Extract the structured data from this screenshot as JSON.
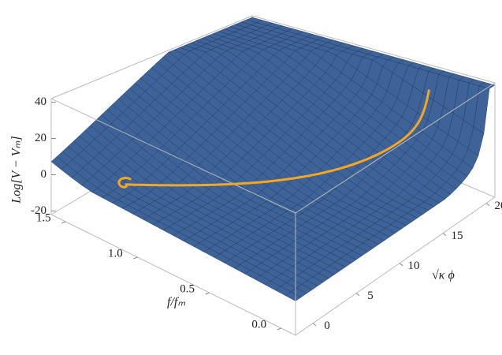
{
  "chart_data": {
    "type": "surface3d",
    "xlabel": "√κ ϕ",
    "ylabel": "f/fₘ",
    "zlabel": "Log[V − Vₘ]",
    "xlim": [
      -2,
      21
    ],
    "xticks": [
      0,
      5,
      10,
      15,
      20
    ],
    "ylim": [
      -0.1,
      1.6
    ],
    "yticks": [
      {
        "value": 0,
        "label": "0.0"
      },
      0.5,
      {
        "value": 1,
        "label": "1.0"
      },
      1.5
    ],
    "zlim": [
      -22,
      42
    ],
    "zticks": [
      -20,
      0,
      20,
      40
    ],
    "color": "#3d6399",
    "curve_color": "#f5a623"
  }
}
